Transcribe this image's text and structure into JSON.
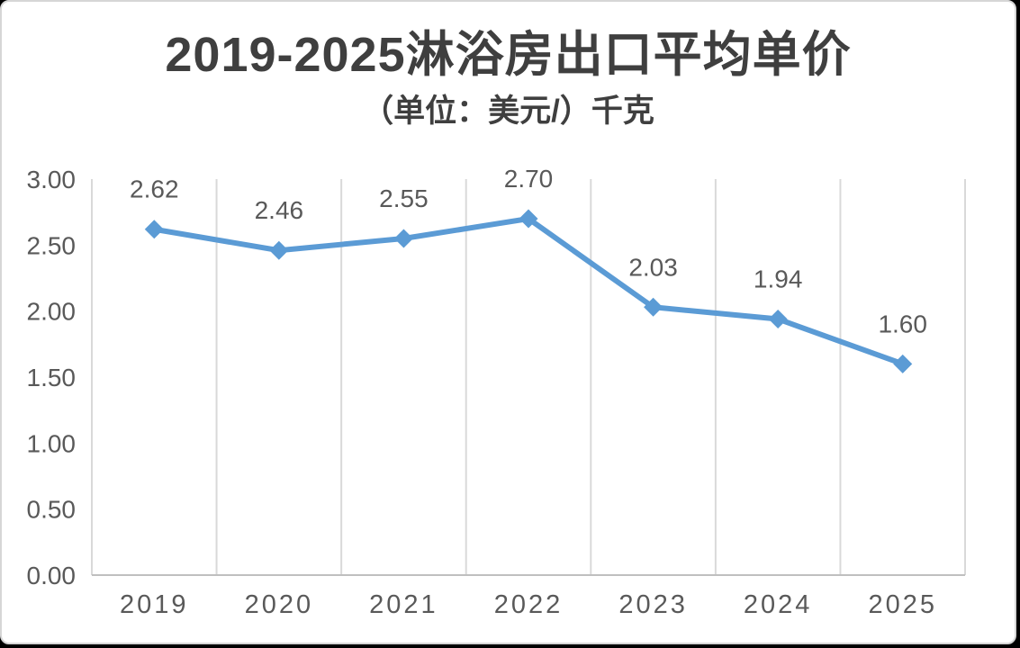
{
  "chart_data": {
    "type": "line",
    "title": "2019-2025淋浴房出口平均单价",
    "subtitle": "（单位：美元/）千克",
    "categories": [
      "2019",
      "2020",
      "2021",
      "2022",
      "2023",
      "2024",
      "2025"
    ],
    "values": [
      2.62,
      2.46,
      2.55,
      2.7,
      2.03,
      1.94,
      1.6
    ],
    "data_labels": [
      "2.62",
      "2.46",
      "2.55",
      "2.70",
      "2.03",
      "1.94",
      "1.60"
    ],
    "ylim": [
      0,
      3
    ],
    "ytick_step": 0.5,
    "ytick_labels": [
      "0.00",
      "0.50",
      "1.00",
      "1.50",
      "2.00",
      "2.50",
      "3.00"
    ],
    "grid": "vertical-only",
    "legend": "none",
    "colors": {
      "line": "#5B9BD5",
      "marker": "#5B9BD5",
      "grid": "#D9D9D9",
      "axis": "#BFBFBF",
      "tick_label": "#595959",
      "data_label": "#595959",
      "title": "#3F3F3F"
    }
  }
}
